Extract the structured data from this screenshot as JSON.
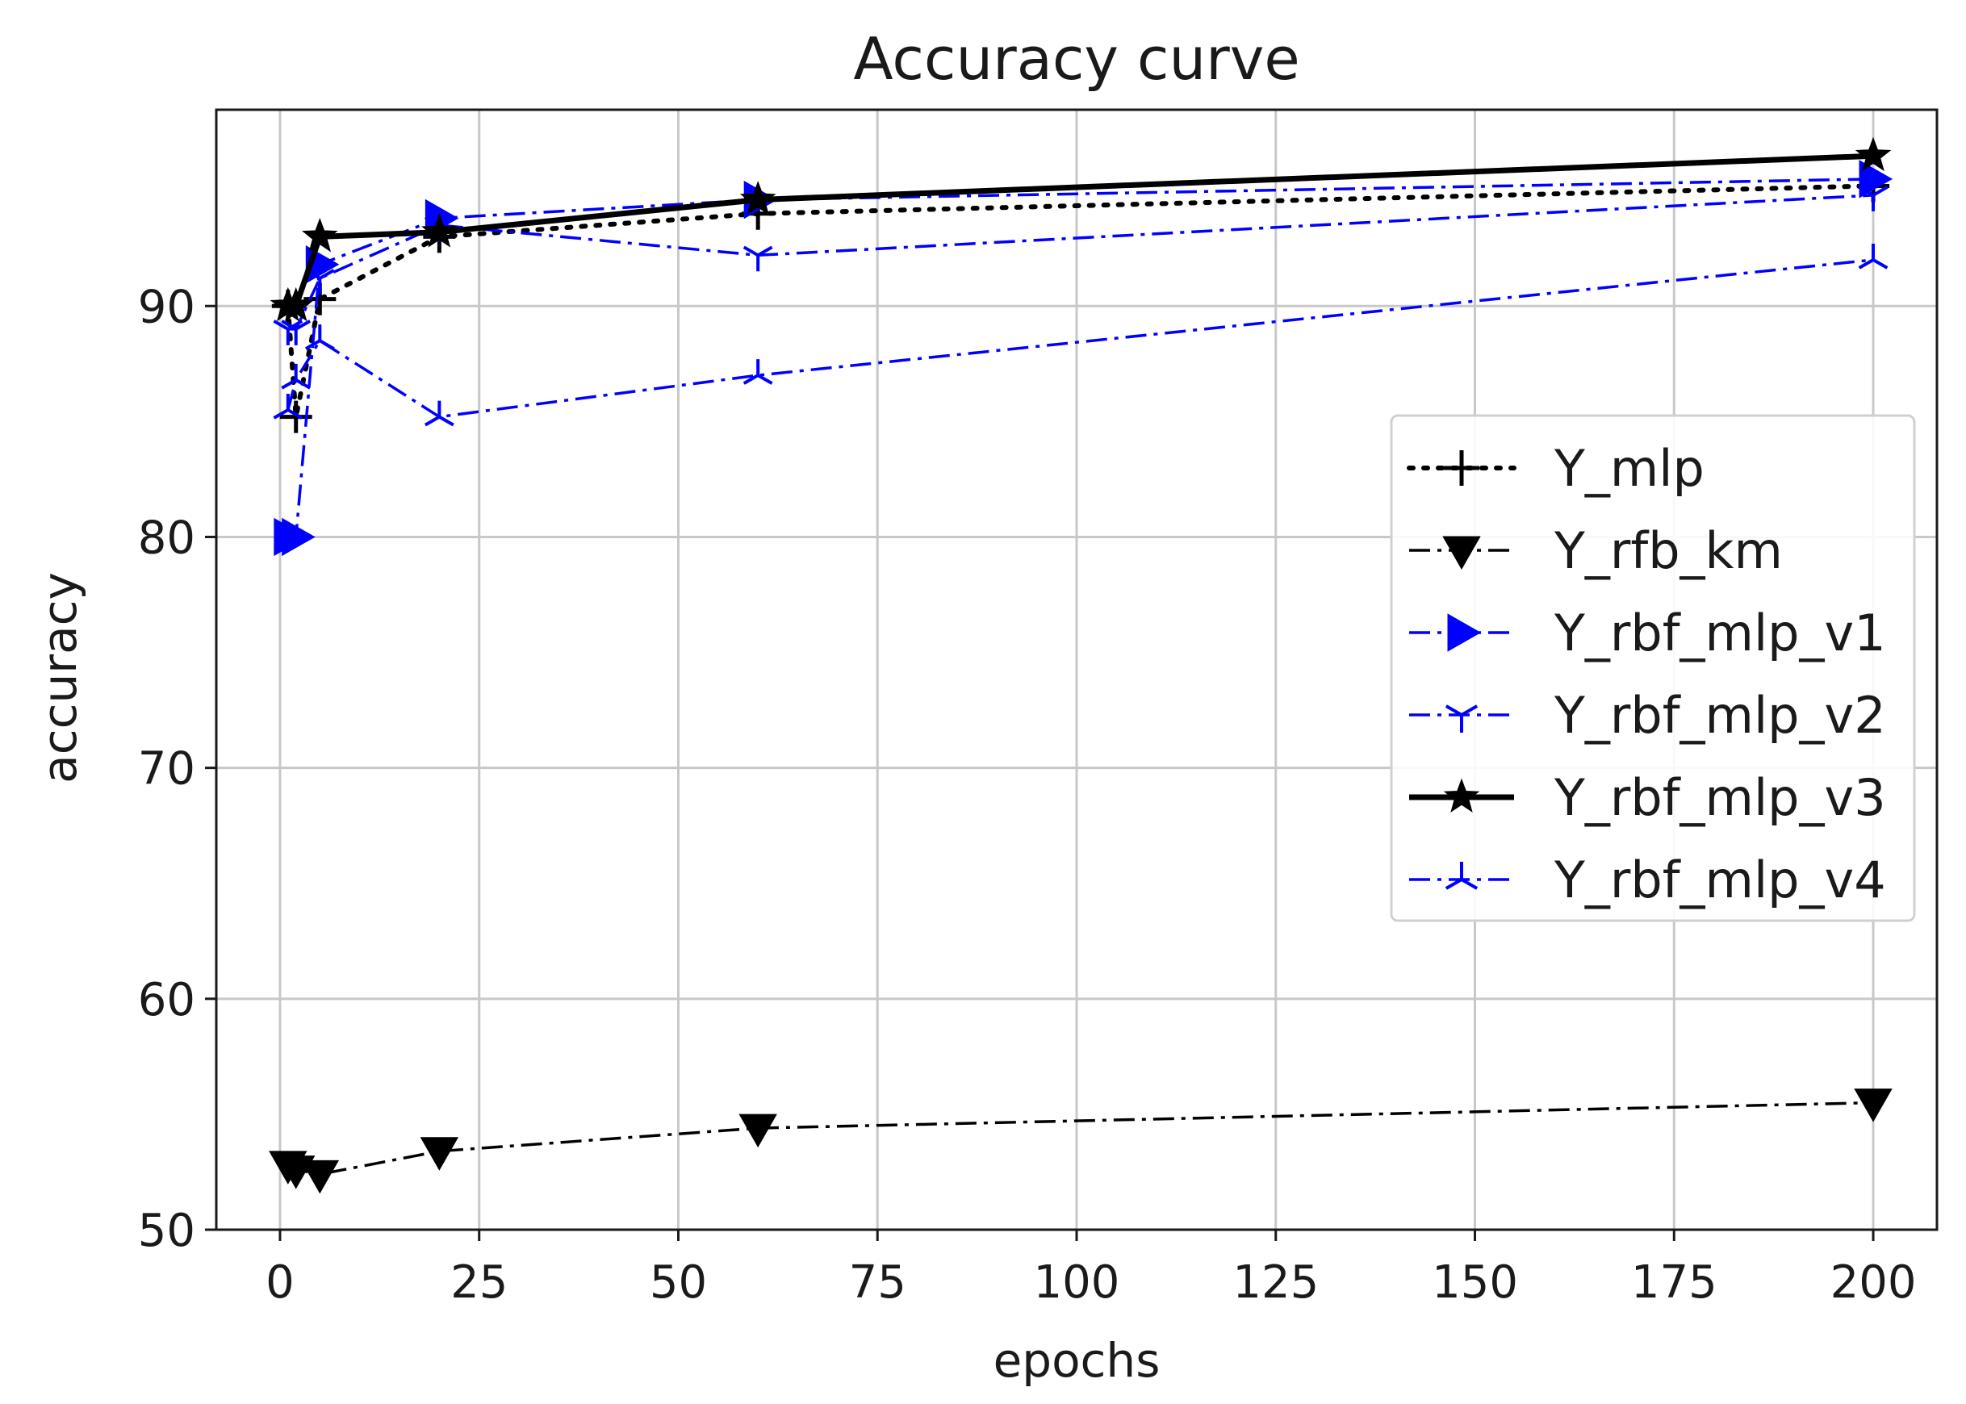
{
  "chart_data": {
    "type": "line",
    "title": "Accuracy curve",
    "xlabel": "epochs",
    "ylabel": "accuracy",
    "xlim": [
      -8,
      208
    ],
    "ylim": [
      50,
      98.5
    ],
    "xticks": [
      0,
      25,
      50,
      75,
      100,
      125,
      150,
      175,
      200
    ],
    "yticks": [
      50,
      60,
      70,
      80,
      90
    ],
    "grid": true,
    "legend_position": "center-right",
    "x": [
      1,
      2,
      5,
      20,
      60,
      200
    ],
    "series": [
      {
        "name": "Y_mlp",
        "values": [
          90,
          85.2,
          90.3,
          93.0,
          94.0,
          95.2
        ],
        "color": "#000000",
        "dash": "dotted",
        "marker": "plus"
      },
      {
        "name": "Y_rfb_km",
        "values": [
          52.8,
          52.6,
          52.4,
          53.4,
          54.4,
          55.5
        ],
        "color": "#000000",
        "dash": "dashdot",
        "marker": "triangle-down"
      },
      {
        "name": "Y_rbf_mlp_v1",
        "values": [
          80,
          80,
          91.8,
          93.8,
          94.6,
          95.5
        ],
        "color": "#0000ff",
        "dash": "dashdot",
        "marker": "triangle-right"
      },
      {
        "name": "Y_rbf_mlp_v2",
        "values": [
          89,
          89,
          91.2,
          93.5,
          92.2,
          94.8
        ],
        "color": "#0000ff",
        "dash": "dashdot",
        "marker": "tri-down"
      },
      {
        "name": "Y_rbf_mlp_v3",
        "values": [
          90,
          90,
          93.0,
          93.2,
          94.6,
          96.5
        ],
        "color": "#000000",
        "dash": "solid",
        "marker": "star"
      },
      {
        "name": "Y_rbf_mlp_v4",
        "values": [
          85.5,
          86.8,
          88.5,
          85.2,
          87.0,
          92.0
        ],
        "color": "#0000ff",
        "dash": "dashdot",
        "marker": "tri-up"
      }
    ]
  }
}
